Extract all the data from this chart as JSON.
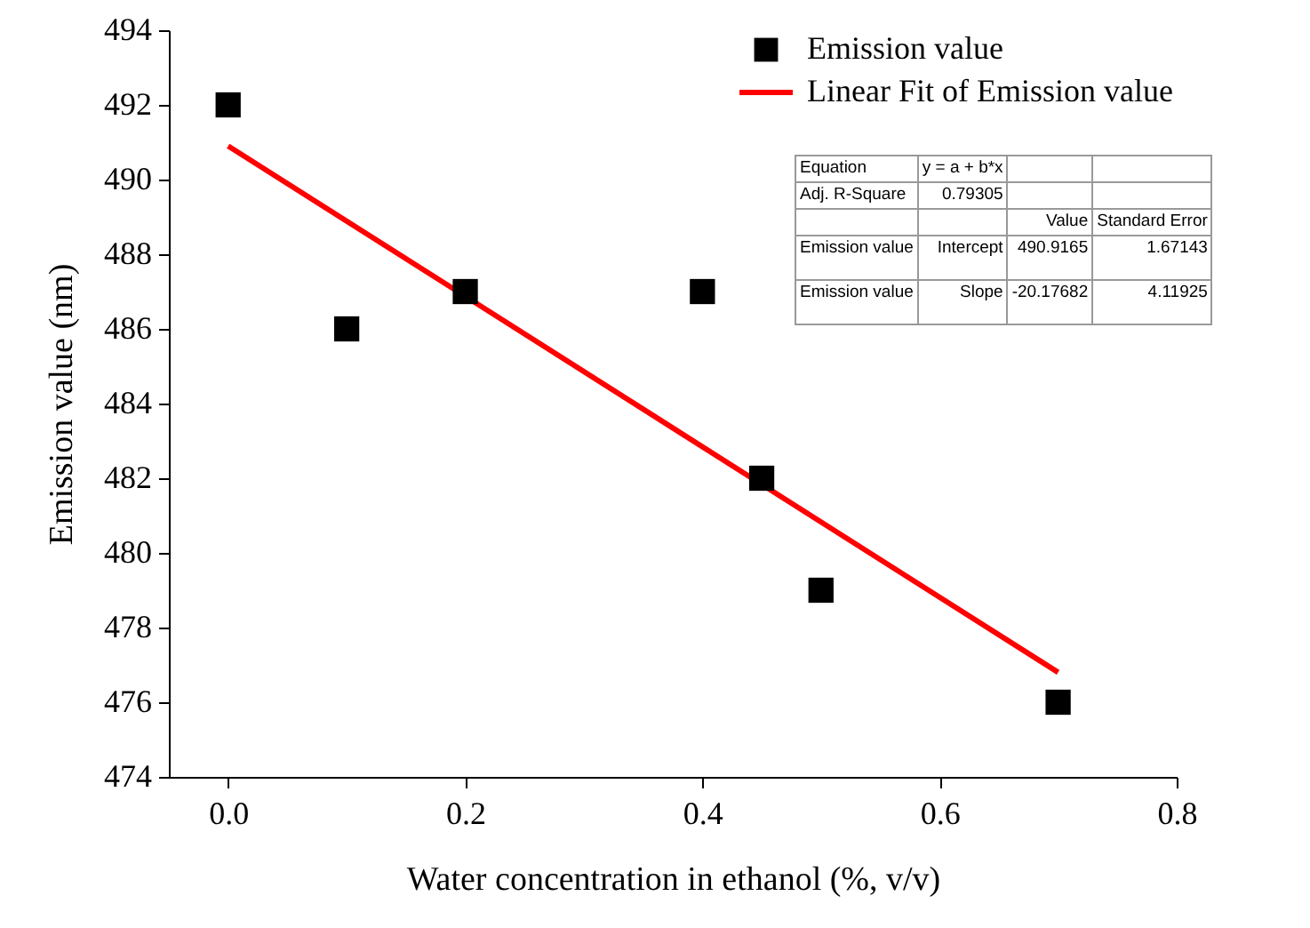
{
  "chart_data": {
    "type": "scatter",
    "xlabel": "Water  concentration in ethanol (%, v/v)",
    "ylabel": "Emission value (nm)",
    "xlim": [
      -0.05,
      0.8
    ],
    "xticks": [
      {
        "value": 0,
        "label": "0.0"
      },
      0.2,
      0.4,
      0.6,
      0.8
    ],
    "ylim": [
      474,
      494
    ],
    "yticks": [
      474,
      476,
      478,
      480,
      482,
      484,
      486,
      488,
      490,
      492,
      494
    ],
    "legend": "top right",
    "grid": false,
    "series": [
      {
        "name": "Emission value",
        "color": "#000000",
        "marker": "square",
        "x": [
          0,
          0.1,
          0.2,
          0.4,
          0.45,
          0.5,
          0.7
        ],
        "values": [
          492,
          486,
          487,
          487,
          482,
          479,
          476
        ]
      },
      {
        "name": "Linear Fit of Emission value",
        "type": "line",
        "color": "#ff0000",
        "x": [
          0,
          0.7
        ],
        "values": [
          490.9,
          476.8
        ]
      }
    ],
    "annotations": [
      "Equation",
      "y = a + b*x",
      "Adj. R-Square",
      "0.79305",
      "Value",
      "Standard Error",
      "Emission value",
      "Intercept",
      "490.9165",
      "1.67143",
      "Emission value",
      "Slope",
      "-20.17682",
      "4.11925"
    ]
  }
}
